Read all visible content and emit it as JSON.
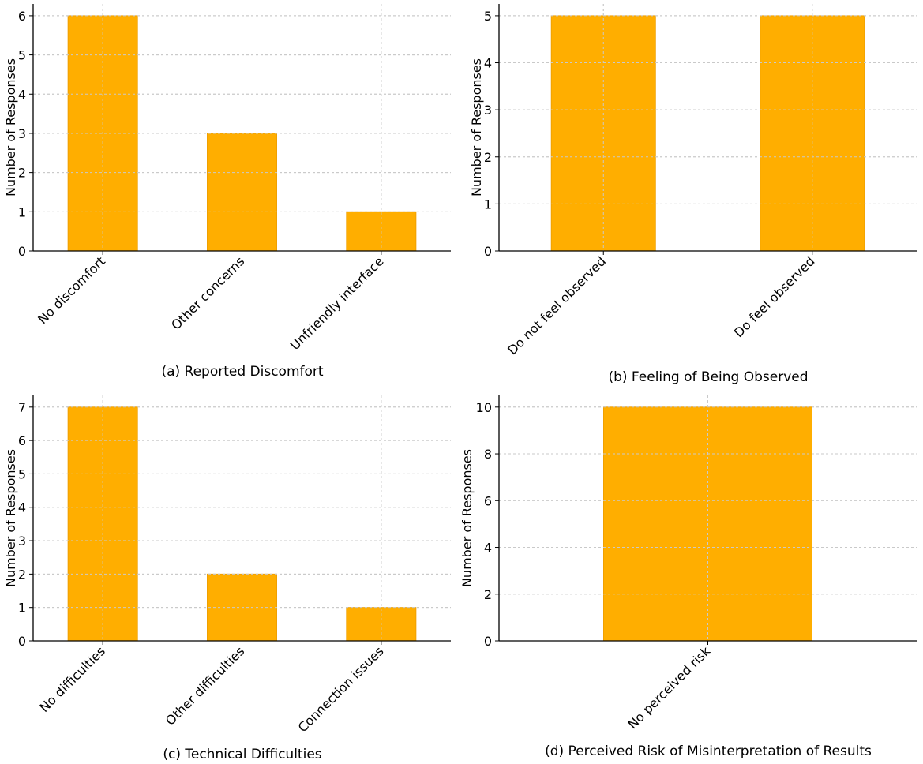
{
  "bar_color": "#FFAE00",
  "bar_edge_color": "#F0A000",
  "chart_data": [
    {
      "type": "bar",
      "caption": "(a) Reported Discomfort",
      "ylabel": "Number of Responses",
      "categories": [
        "No discomfort",
        "Other concerns",
        "Unfriendly interface"
      ],
      "values": [
        6,
        3,
        1
      ],
      "ylim": [
        0,
        6.3
      ],
      "yticks": [
        0,
        1,
        2,
        3,
        4,
        5,
        6
      ],
      "grid": true
    },
    {
      "type": "bar",
      "caption": "(b) Feeling of Being Observed",
      "ylabel": "Number of Responses",
      "categories": [
        "Do not feel observed",
        "Do feel observed"
      ],
      "values": [
        5,
        5
      ],
      "ylim": [
        0,
        5.25
      ],
      "yticks": [
        0,
        1,
        2,
        3,
        4,
        5
      ],
      "grid": true
    },
    {
      "type": "bar",
      "caption": "(c) Technical Difficulties",
      "ylabel": "Number of Responses",
      "categories": [
        "No difficulties",
        "Other difficulties",
        "Connection issues"
      ],
      "values": [
        7,
        2,
        1
      ],
      "ylim": [
        0,
        7.35
      ],
      "yticks": [
        0,
        1,
        2,
        3,
        4,
        5,
        6,
        7
      ],
      "grid": true
    },
    {
      "type": "bar",
      "caption": "(d) Perceived Risk of Misinterpretation of Results",
      "ylabel": "Number of Responses",
      "categories": [
        "No perceived risk"
      ],
      "values": [
        10
      ],
      "ylim": [
        0,
        10.5
      ],
      "yticks": [
        0,
        2,
        4,
        6,
        8,
        10
      ],
      "grid": true
    }
  ]
}
